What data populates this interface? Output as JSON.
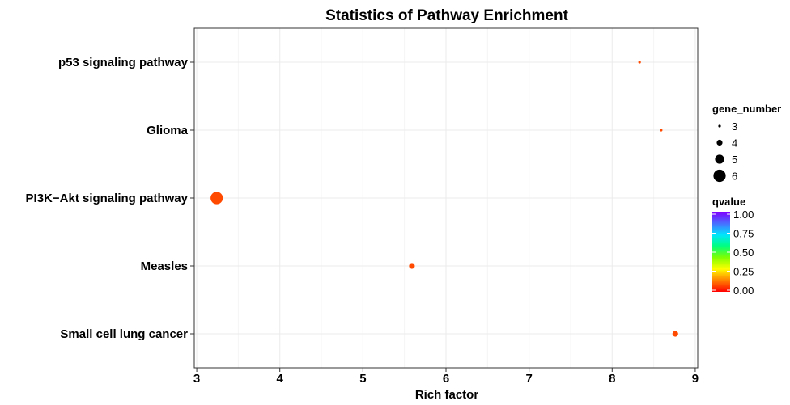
{
  "chart_data": {
    "type": "scatter",
    "title": "Statistics of Pathway Enrichment",
    "xlabel": "Rich factor",
    "ylabel": "",
    "xlim": [
      2.97,
      9.03
    ],
    "xticks": [
      "3",
      "4",
      "5",
      "6",
      "7",
      "8",
      "9"
    ],
    "categories": [
      "p53 signaling pathway",
      "Glioma",
      "PI3K−Akt signaling pathway",
      "Measles",
      "Small cell lung cancer"
    ],
    "points": [
      {
        "pathway": "p53 signaling pathway",
        "rich_factor": 8.33,
        "gene_number": 3,
        "qvalue": 0.02
      },
      {
        "pathway": "Glioma",
        "rich_factor": 8.59,
        "gene_number": 3,
        "qvalue": 0.02
      },
      {
        "pathway": "PI3K−Akt signaling pathway",
        "rich_factor": 3.24,
        "gene_number": 6,
        "qvalue": 0.02
      },
      {
        "pathway": "Measles",
        "rich_factor": 5.59,
        "gene_number": 4,
        "qvalue": 0.02
      },
      {
        "pathway": "Small cell lung cancer",
        "rich_factor": 8.76,
        "gene_number": 4,
        "qvalue": 0.02
      }
    ],
    "size_legend": {
      "title": "gene_number",
      "levels": [
        3,
        4,
        5,
        6
      ],
      "labels": [
        "3",
        "4",
        "5",
        "6"
      ]
    },
    "color_legend": {
      "title": "qvalue",
      "ticks": [
        "1.00",
        "0.75",
        "0.50",
        "0.25",
        "0.00"
      ],
      "gradient_top_to_bottom": [
        "#7f00ff",
        "#4a6bff",
        "#00e5ff",
        "#00ff7f",
        "#7fff00",
        "#ffff00",
        "#ff8000",
        "#ff0000"
      ]
    },
    "grid": true,
    "legend_position": "right",
    "colors": {
      "point_fill": "#ff4a00",
      "panel_border": "#333333",
      "grid_major": "#ebebeb",
      "grid_minor": "#f5f5f5"
    }
  }
}
